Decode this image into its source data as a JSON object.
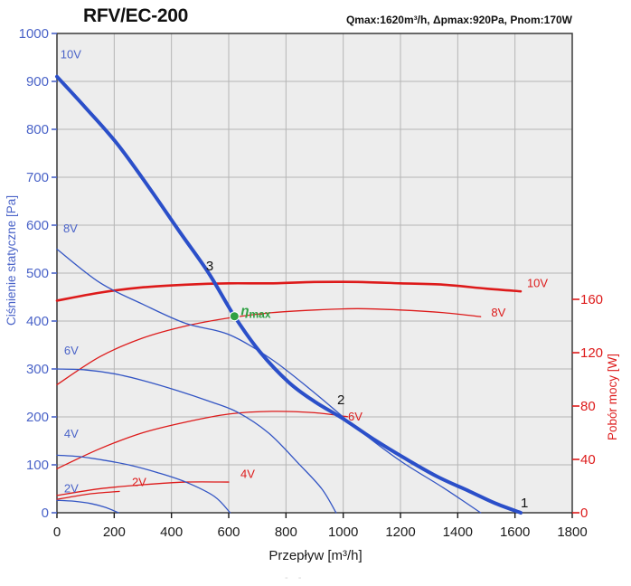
{
  "header": {
    "title": "RFV/EC-200",
    "specs": "Qmax:1620m³/h, Δpmax:920Pa, Pnom:170W"
  },
  "colors": {
    "pressure_axis": "#4a63c8",
    "power_axis": "#dd1a1a",
    "pressure_curve": "#3355c4",
    "pressure_curve_main": "#2b4fc9",
    "power_curve": "#dd1a1a",
    "efficiency": "#2fa043",
    "grid": "#b5b5b5",
    "plot_bg": "#ededed",
    "border": "#3a3a3a",
    "text": "#1a1a1a"
  },
  "bottom_artifact": "‐ ‐",
  "chart_data": {
    "type": "line",
    "title": "RFV/EC-200",
    "subtitle": "Qmax:1620m³/h, Δpmax:920Pa, Pnom:170W",
    "grid": true,
    "x_axis": {
      "label": "Przepływ [m³/h]",
      "min": 0,
      "max": 1800,
      "tick_step": 200
    },
    "y_left": {
      "label": "Ciśnienie statyczne [Pa]",
      "min": 0,
      "max": 1000,
      "tick_step": 100
    },
    "y_right": {
      "label": "Pobór mocy [W]",
      "min": 0,
      "max": 160,
      "tick_step": 40
    },
    "pressure_series": [
      {
        "name": "2V",
        "label_f": 25,
        "label_v": 42,
        "points": [
          [
            0,
            26
          ],
          [
            60,
            24
          ],
          [
            120,
            19
          ],
          [
            170,
            11
          ],
          [
            215,
            0
          ]
        ]
      },
      {
        "name": "4V",
        "label_f": 25,
        "label_v": 157,
        "points": [
          [
            0,
            120
          ],
          [
            80,
            117
          ],
          [
            160,
            110
          ],
          [
            250,
            100
          ],
          [
            350,
            84
          ],
          [
            450,
            64
          ],
          [
            550,
            34
          ],
          [
            605,
            0
          ]
        ]
      },
      {
        "name": "6V",
        "label_f": 25,
        "label_v": 330,
        "points": [
          [
            0,
            300
          ],
          [
            100,
            298
          ],
          [
            200,
            290
          ],
          [
            300,
            276
          ],
          [
            420,
            255
          ],
          [
            530,
            233
          ],
          [
            630,
            210
          ],
          [
            740,
            166
          ],
          [
            845,
            102
          ],
          [
            925,
            50
          ],
          [
            975,
            0
          ]
        ]
      },
      {
        "name": "8V",
        "label_f": 22,
        "label_v": 585,
        "points": [
          [
            0,
            550
          ],
          [
            150,
            480
          ],
          [
            300,
            435
          ],
          [
            450,
            395
          ],
          [
            600,
            372
          ],
          [
            750,
            320
          ],
          [
            900,
            250
          ],
          [
            1050,
            175
          ],
          [
            1200,
            108
          ],
          [
            1350,
            52
          ],
          [
            1480,
            0
          ]
        ]
      },
      {
        "name": "10V",
        "label_f": 12,
        "label_v": 948,
        "emphasis": true,
        "points": [
          [
            0,
            910
          ],
          [
            100,
            845
          ],
          [
            210,
            770
          ],
          [
            320,
            680
          ],
          [
            430,
            585
          ],
          [
            530,
            500
          ],
          [
            620,
            410
          ],
          [
            710,
            335
          ],
          [
            810,
            272
          ],
          [
            900,
            232
          ],
          [
            1000,
            196
          ],
          [
            1110,
            152
          ],
          [
            1220,
            112
          ],
          [
            1330,
            75
          ],
          [
            1440,
            45
          ],
          [
            1530,
            20
          ],
          [
            1620,
            0
          ]
        ]
      }
    ],
    "power_series": [
      {
        "name": "2V",
        "label_f": 262,
        "label_v": 20,
        "points": [
          [
            0,
            10
          ],
          [
            110,
            14
          ],
          [
            218,
            16
          ]
        ]
      },
      {
        "name": "4V",
        "label_f": 641,
        "label_v": 26,
        "points": [
          [
            0,
            13
          ],
          [
            150,
            18
          ],
          [
            300,
            21
          ],
          [
            450,
            23
          ],
          [
            600,
            23
          ]
        ]
      },
      {
        "name": "6V",
        "label_f": 1017,
        "label_v": 69,
        "points": [
          [
            0,
            33
          ],
          [
            150,
            48
          ],
          [
            300,
            60
          ],
          [
            450,
            68
          ],
          [
            600,
            74
          ],
          [
            750,
            76
          ],
          [
            900,
            75
          ],
          [
            1015,
            72
          ]
        ]
      },
      {
        "name": "8V",
        "label_f": 1517,
        "label_v": 147,
        "points": [
          [
            0,
            96
          ],
          [
            150,
            117
          ],
          [
            300,
            131
          ],
          [
            450,
            140
          ],
          [
            600,
            146
          ],
          [
            750,
            150
          ],
          [
            900,
            152
          ],
          [
            1050,
            153
          ],
          [
            1200,
            152
          ],
          [
            1350,
            150
          ],
          [
            1480,
            147
          ]
        ]
      },
      {
        "name": "10V",
        "label_f": 1642,
        "label_v": 169,
        "emphasis": true,
        "points": [
          [
            0,
            159
          ],
          [
            150,
            165
          ],
          [
            300,
            169
          ],
          [
            450,
            171
          ],
          [
            600,
            172
          ],
          [
            750,
            172
          ],
          [
            900,
            173
          ],
          [
            1050,
            173
          ],
          [
            1200,
            172
          ],
          [
            1350,
            171
          ],
          [
            1500,
            168
          ],
          [
            1620,
            166
          ]
        ]
      }
    ],
    "point_markers": [
      {
        "text": "3",
        "f": 534,
        "pa": 506
      },
      {
        "text": "2",
        "f": 992,
        "pa": 226
      },
      {
        "text": "1",
        "f": 1633,
        "pa": 11
      }
    ],
    "efficiency_point": {
      "symbol": "η",
      "subscript": "max",
      "f": 620,
      "pa": 410
    }
  }
}
